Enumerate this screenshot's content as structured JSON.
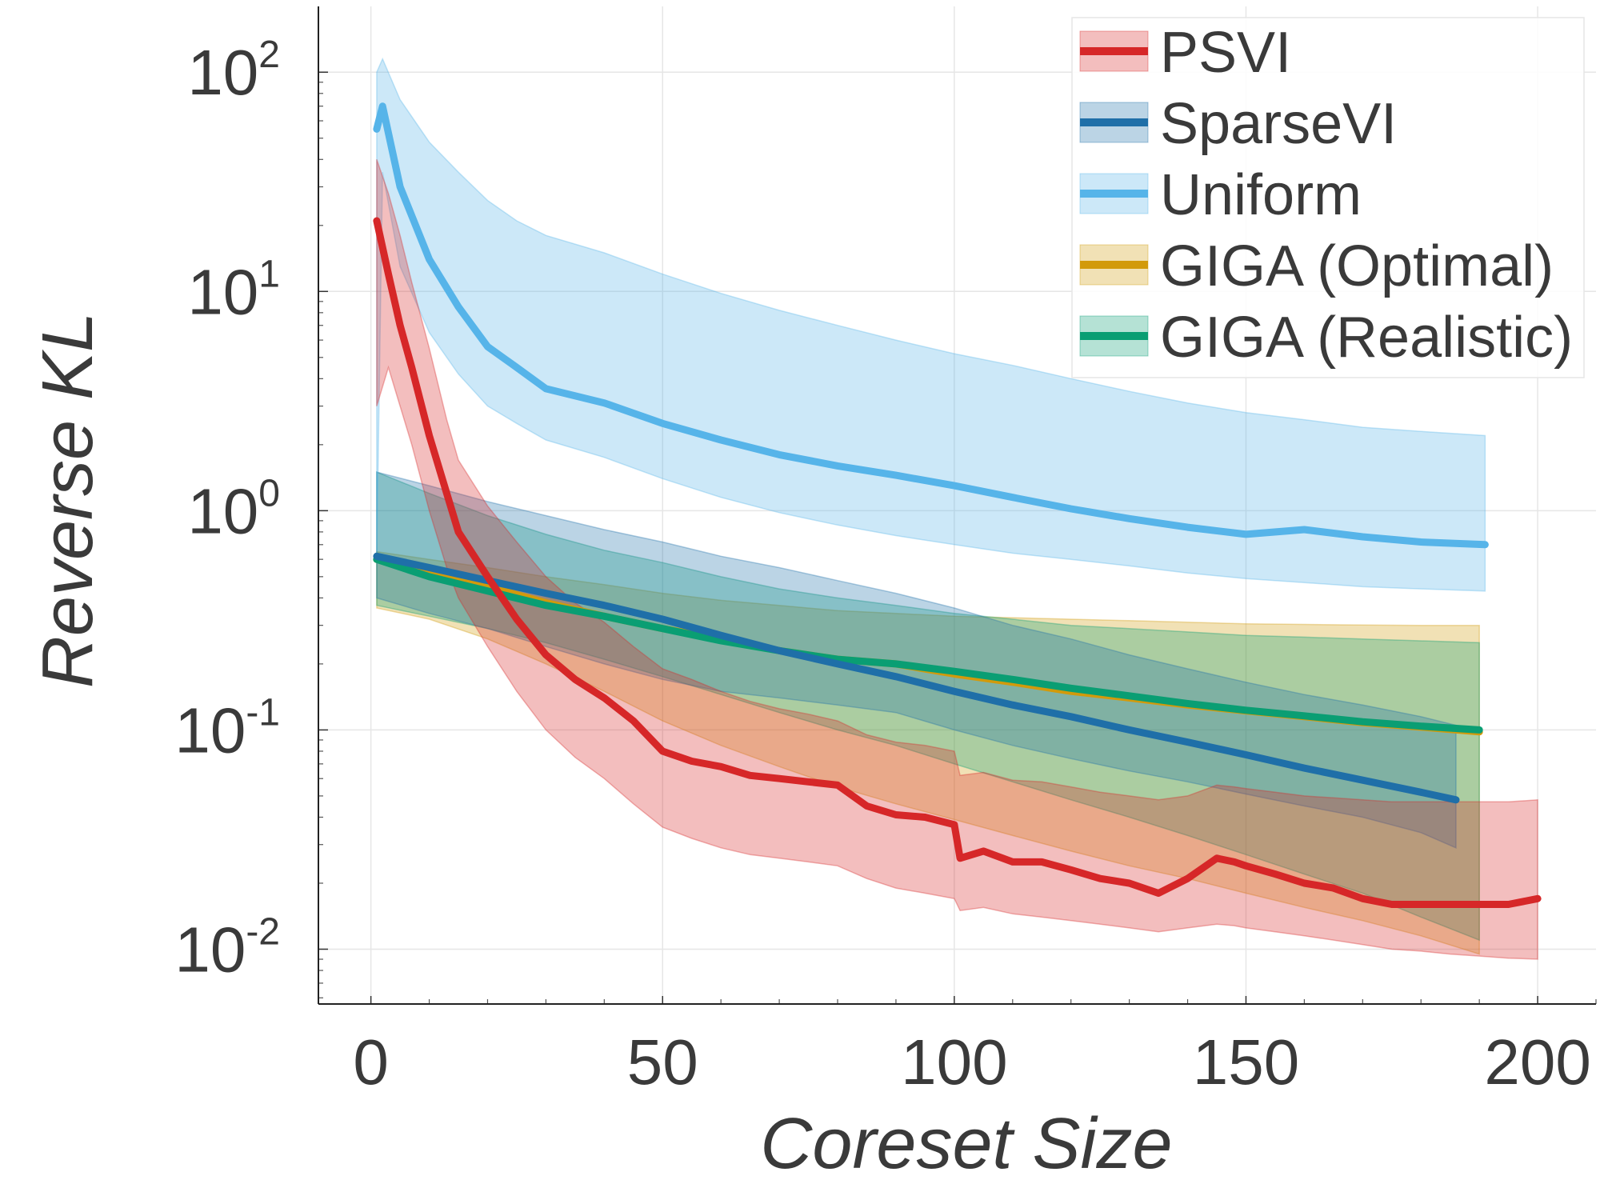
{
  "chart_data": {
    "type": "line",
    "xlabel": "Coreset Size",
    "ylabel": "Reverse KL",
    "xlim": [
      -9,
      210
    ],
    "ylim_log10": [
      -2.25,
      2.3
    ],
    "y_scale": "log",
    "grid": true,
    "legend_placement": "top-right",
    "x_ticks": [
      "0",
      "50",
      "100",
      "150",
      "200"
    ],
    "x_tick_values": [
      0,
      50,
      100,
      150,
      200
    ],
    "y_ticks": [
      {
        "value": 100,
        "base": "10",
        "exp": "2"
      },
      {
        "value": 10,
        "base": "10",
        "exp": "1"
      },
      {
        "value": 1,
        "base": "10",
        "exp": "0"
      },
      {
        "value": 0.1,
        "base": "10",
        "exp": "-1"
      },
      {
        "value": 0.01,
        "base": "10",
        "exp": "-2"
      }
    ],
    "series": [
      {
        "key": "giga_opt",
        "name": "GIGA (Optimal)",
        "color": "#d29a0b",
        "x": [
          1,
          10,
          20,
          30,
          40,
          50,
          60,
          70,
          80,
          90,
          100,
          110,
          120,
          130,
          140,
          150,
          160,
          170,
          180,
          190
        ],
        "y": [
          0.6,
          0.52,
          0.45,
          0.38,
          0.33,
          0.29,
          0.26,
          0.23,
          0.21,
          0.2,
          0.18,
          0.165,
          0.15,
          0.14,
          0.13,
          0.122,
          0.115,
          0.108,
          0.103,
          0.098
        ],
        "upper": [
          0.65,
          0.6,
          0.55,
          0.5,
          0.46,
          0.42,
          0.39,
          0.37,
          0.35,
          0.34,
          0.33,
          0.325,
          0.32,
          0.315,
          0.31,
          0.305,
          0.303,
          0.301,
          0.3,
          0.3
        ],
        "lower": [
          0.36,
          0.32,
          0.26,
          0.2,
          0.15,
          0.11,
          0.085,
          0.068,
          0.055,
          0.046,
          0.039,
          0.033,
          0.028,
          0.024,
          0.021,
          0.018,
          0.0155,
          0.0135,
          0.0115,
          0.0095
        ]
      },
      {
        "key": "giga_real",
        "name": "GIGA (Realistic)",
        "color": "#0a9e73",
        "x": [
          1,
          10,
          20,
          30,
          40,
          50,
          60,
          70,
          80,
          90,
          100,
          110,
          120,
          130,
          140,
          150,
          160,
          170,
          180,
          190
        ],
        "y": [
          0.6,
          0.5,
          0.43,
          0.37,
          0.33,
          0.29,
          0.255,
          0.23,
          0.21,
          0.2,
          0.185,
          0.17,
          0.155,
          0.143,
          0.132,
          0.123,
          0.116,
          0.109,
          0.104,
          0.1
        ],
        "upper": [
          1.5,
          1.2,
          0.95,
          0.78,
          0.66,
          0.58,
          0.5,
          0.44,
          0.4,
          0.37,
          0.34,
          0.32,
          0.3,
          0.29,
          0.28,
          0.27,
          0.265,
          0.26,
          0.255,
          0.25
        ],
        "lower": [
          0.37,
          0.33,
          0.29,
          0.25,
          0.21,
          0.175,
          0.145,
          0.12,
          0.1,
          0.085,
          0.07,
          0.058,
          0.048,
          0.04,
          0.033,
          0.027,
          0.022,
          0.018,
          0.014,
          0.011
        ]
      },
      {
        "key": "sparsevi",
        "name": "SparseVI",
        "color": "#1f6fa8",
        "x": [
          1,
          10,
          20,
          30,
          40,
          50,
          60,
          70,
          80,
          90,
          100,
          110,
          120,
          130,
          140,
          150,
          160,
          170,
          180,
          186
        ],
        "y": [
          0.62,
          0.55,
          0.48,
          0.42,
          0.37,
          0.32,
          0.27,
          0.23,
          0.2,
          0.175,
          0.15,
          0.13,
          0.115,
          0.1,
          0.088,
          0.077,
          0.067,
          0.059,
          0.052,
          0.048
        ],
        "upper": [
          1.5,
          1.3,
          1.1,
          0.95,
          0.82,
          0.72,
          0.62,
          0.55,
          0.48,
          0.42,
          0.36,
          0.3,
          0.26,
          0.22,
          0.19,
          0.165,
          0.145,
          0.13,
          0.115,
          0.105
        ],
        "lower": [
          0.4,
          0.34,
          0.29,
          0.24,
          0.2,
          0.17,
          0.15,
          0.14,
          0.13,
          0.12,
          0.1,
          0.085,
          0.074,
          0.065,
          0.058,
          0.051,
          0.045,
          0.04,
          0.034,
          0.029
        ]
      },
      {
        "key": "uniform",
        "name": "Uniform",
        "color": "#56b4e9",
        "x": [
          1,
          2,
          5,
          10,
          15,
          20,
          25,
          30,
          40,
          50,
          60,
          70,
          80,
          90,
          100,
          110,
          120,
          130,
          140,
          150,
          160,
          170,
          180,
          191
        ],
        "y": [
          55,
          70,
          30,
          14,
          8.5,
          5.6,
          4.5,
          3.6,
          3.1,
          2.5,
          2.1,
          1.8,
          1.6,
          1.45,
          1.3,
          1.15,
          1.02,
          0.92,
          0.84,
          0.78,
          0.82,
          0.76,
          0.72,
          0.7
        ],
        "upper": [
          100,
          115,
          75,
          48,
          35,
          26,
          21,
          18,
          15,
          12,
          9.8,
          8.2,
          7,
          6,
          5.2,
          4.6,
          4,
          3.5,
          3.1,
          2.8,
          2.6,
          2.4,
          2.3,
          2.2
        ],
        "lower": [
          0.6,
          35,
          13,
          6.5,
          4.2,
          3,
          2.5,
          2.1,
          1.75,
          1.4,
          1.15,
          0.98,
          0.86,
          0.77,
          0.7,
          0.64,
          0.6,
          0.56,
          0.52,
          0.49,
          0.47,
          0.45,
          0.44,
          0.43
        ]
      },
      {
        "key": "psvi",
        "name": "PSVI",
        "color": "#d62728",
        "x": [
          1,
          3,
          5,
          7,
          10,
          13,
          15,
          20,
          25,
          30,
          35,
          40,
          45,
          50,
          55,
          60,
          65,
          70,
          75,
          80,
          85,
          90,
          95,
          100,
          101,
          105,
          110,
          115,
          120,
          125,
          130,
          135,
          140,
          145,
          148,
          150,
          155,
          160,
          165,
          170,
          175,
          180,
          185,
          190,
          195,
          200
        ],
        "y": [
          21,
          12,
          7,
          4.5,
          2.2,
          1.2,
          0.8,
          0.5,
          0.32,
          0.22,
          0.17,
          0.14,
          0.11,
          0.08,
          0.072,
          0.068,
          0.062,
          0.06,
          0.058,
          0.056,
          0.045,
          0.041,
          0.04,
          0.037,
          0.026,
          0.028,
          0.025,
          0.025,
          0.023,
          0.021,
          0.02,
          0.018,
          0.021,
          0.026,
          0.025,
          0.024,
          0.022,
          0.02,
          0.019,
          0.017,
          0.016,
          0.016,
          0.016,
          0.016,
          0.016,
          0.017
        ],
        "upper": [
          40,
          28,
          18,
          11,
          5.5,
          2.6,
          1.7,
          1.05,
          0.72,
          0.5,
          0.38,
          0.31,
          0.24,
          0.19,
          0.17,
          0.15,
          0.135,
          0.125,
          0.118,
          0.11,
          0.095,
          0.088,
          0.085,
          0.08,
          0.062,
          0.064,
          0.059,
          0.058,
          0.055,
          0.052,
          0.05,
          0.048,
          0.05,
          0.056,
          0.055,
          0.054,
          0.052,
          0.05,
          0.049,
          0.048,
          0.047,
          0.047,
          0.047,
          0.047,
          0.047,
          0.048
        ],
        "lower": [
          3,
          4.5,
          3,
          2,
          1,
          0.55,
          0.4,
          0.24,
          0.15,
          0.1,
          0.075,
          0.06,
          0.046,
          0.036,
          0.032,
          0.029,
          0.027,
          0.026,
          0.025,
          0.024,
          0.021,
          0.019,
          0.018,
          0.017,
          0.015,
          0.0155,
          0.0145,
          0.014,
          0.0135,
          0.013,
          0.0125,
          0.012,
          0.0125,
          0.013,
          0.0128,
          0.0125,
          0.012,
          0.0115,
          0.011,
          0.0105,
          0.01,
          0.0098,
          0.0095,
          0.0093,
          0.0091,
          0.009
        ]
      }
    ],
    "legend_order": [
      "psvi",
      "sparsevi",
      "uniform",
      "giga_opt",
      "giga_real"
    ]
  }
}
